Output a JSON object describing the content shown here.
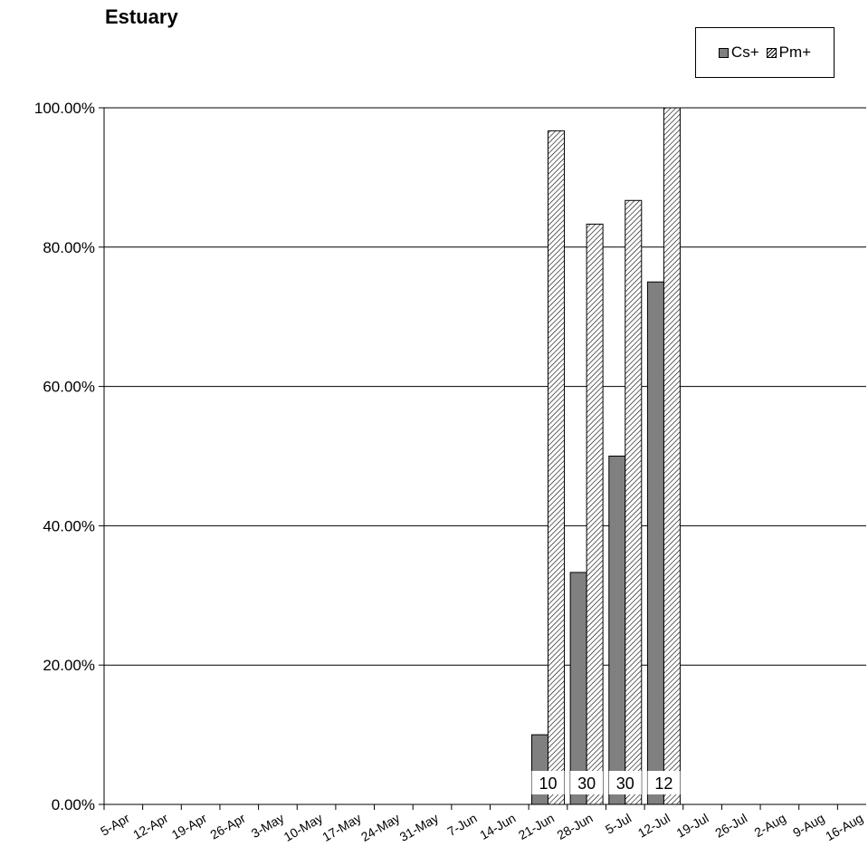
{
  "chart_data": {
    "type": "bar",
    "title": "Estuary",
    "xlabel": "",
    "ylabel": "",
    "ylim": [
      0,
      100
    ],
    "ytick_labels": [
      "0.00%",
      "20.00%",
      "40.00%",
      "60.00%",
      "80.00%",
      "100.00%"
    ],
    "categories": [
      "5-Apr",
      "12-Apr",
      "19-Apr",
      "26-Apr",
      "3-May",
      "10-May",
      "17-May",
      "24-May",
      "31-May",
      "7-Jun",
      "14-Jun",
      "21-Jun",
      "28-Jun",
      "5-Jul",
      "12-Jul",
      "19-Jul",
      "26-Jul",
      "2-Aug",
      "9-Aug",
      "16-Aug"
    ],
    "series": [
      {
        "name": "Cs+",
        "color": "#808080",
        "fill": "solid",
        "values": [
          null,
          null,
          null,
          null,
          null,
          null,
          null,
          null,
          null,
          null,
          null,
          10,
          33.3,
          50,
          75,
          null,
          null,
          null,
          null,
          null
        ]
      },
      {
        "name": "Pm+",
        "color": "#ffffff",
        "fill": "hatched",
        "values": [
          null,
          null,
          null,
          null,
          null,
          null,
          null,
          null,
          null,
          null,
          null,
          96.7,
          83.3,
          86.7,
          100,
          null,
          null,
          null,
          null,
          null
        ]
      }
    ],
    "sample_sizes": [
      {
        "category": "21-Jun",
        "n": "10"
      },
      {
        "category": "28-Jun",
        "n": "30"
      },
      {
        "category": "5-Jul",
        "n": "30"
      },
      {
        "category": "12-Jul",
        "n": "12"
      }
    ],
    "grid": true,
    "legend_position": "top-right"
  }
}
